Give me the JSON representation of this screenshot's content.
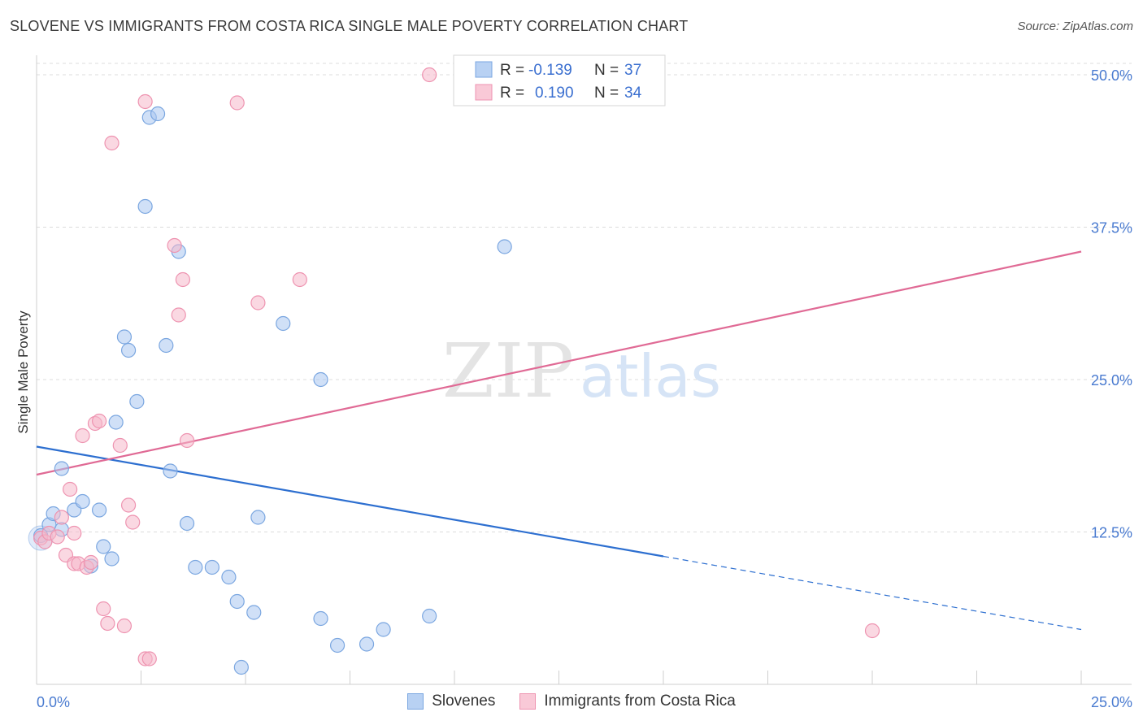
{
  "header": {
    "title": "SLOVENE VS IMMIGRANTS FROM COSTA RICA SINGLE MALE POVERTY CORRELATION CHART",
    "source": "Source: ZipAtlas.com"
  },
  "watermark": {
    "zip": "ZIP",
    "atlas": "atlas"
  },
  "legend": {
    "rows": [
      {
        "r_label": "R =",
        "r_value": "-0.139",
        "n_label": "N =",
        "n_value": "37"
      },
      {
        "r_label": "R =",
        "r_value": "0.190",
        "n_label": "N =",
        "n_value": "34"
      }
    ],
    "bottom": [
      "Slovenes",
      "Immigrants from Costa Rica"
    ]
  },
  "colors": {
    "blue_fill": "#a9c7f0",
    "blue_stroke": "#7aa6e0",
    "blue_line": "#2d6fd0",
    "pink_fill": "#f6b8cb",
    "pink_stroke": "#ee93b0",
    "pink_line": "#e06a95",
    "tick_text": "#4a7bd0"
  },
  "chart_data": {
    "type": "scatter",
    "title": "SLOVENE VS IMMIGRANTS FROM COSTA RICA SINGLE MALE POVERTY CORRELATION CHART",
    "xlabel": "",
    "ylabel": "Single Male Poverty",
    "xlim": [
      0,
      25
    ],
    "ylim": [
      0,
      52
    ],
    "x_tick_labels": [
      "0.0%",
      "25.0%"
    ],
    "y_ticks": [
      12.5,
      25.0,
      37.5,
      50.0
    ],
    "y_tick_labels": [
      "12.5%",
      "25.0%",
      "37.5%",
      "50.0%"
    ],
    "series": [
      {
        "name": "Slovenes",
        "color": "#7aa6e0",
        "R": -0.139,
        "N": 37,
        "points": [
          [
            0.1,
            12.2
          ],
          [
            0.3,
            13.1
          ],
          [
            0.4,
            14.0
          ],
          [
            0.6,
            12.7
          ],
          [
            0.6,
            17.7
          ],
          [
            0.9,
            14.3
          ],
          [
            1.1,
            15.0
          ],
          [
            1.3,
            9.7
          ],
          [
            1.5,
            14.3
          ],
          [
            1.6,
            11.3
          ],
          [
            1.8,
            10.3
          ],
          [
            1.9,
            21.5
          ],
          [
            2.1,
            28.5
          ],
          [
            2.2,
            27.4
          ],
          [
            2.4,
            23.2
          ],
          [
            2.6,
            39.2
          ],
          [
            2.7,
            46.5
          ],
          [
            2.9,
            46.8
          ],
          [
            3.1,
            27.8
          ],
          [
            3.2,
            17.5
          ],
          [
            3.4,
            35.5
          ],
          [
            3.6,
            13.2
          ],
          [
            3.8,
            9.6
          ],
          [
            4.2,
            9.6
          ],
          [
            4.6,
            8.8
          ],
          [
            4.8,
            6.8
          ],
          [
            4.9,
            1.4
          ],
          [
            5.2,
            5.9
          ],
          [
            5.3,
            13.7
          ],
          [
            5.9,
            29.6
          ],
          [
            6.8,
            25.0
          ],
          [
            6.8,
            5.4
          ],
          [
            7.2,
            3.2
          ],
          [
            7.9,
            3.3
          ],
          [
            8.3,
            4.5
          ],
          [
            9.4,
            5.6
          ],
          [
            11.2,
            35.9
          ]
        ]
      },
      {
        "name": "Immigrants from Costa Rica",
        "color": "#ee93b0",
        "R": 0.19,
        "N": 34,
        "points": [
          [
            0.1,
            12.0
          ],
          [
            0.2,
            11.7
          ],
          [
            0.3,
            12.4
          ],
          [
            0.5,
            12.1
          ],
          [
            0.6,
            13.7
          ],
          [
            0.7,
            10.6
          ],
          [
            0.8,
            16.0
          ],
          [
            0.9,
            9.9
          ],
          [
            1.0,
            9.9
          ],
          [
            1.1,
            20.4
          ],
          [
            1.2,
            9.6
          ],
          [
            1.3,
            10.0
          ],
          [
            1.4,
            21.4
          ],
          [
            1.5,
            21.6
          ],
          [
            1.6,
            6.2
          ],
          [
            1.7,
            5.0
          ],
          [
            1.8,
            44.4
          ],
          [
            2.0,
            19.6
          ],
          [
            2.1,
            4.8
          ],
          [
            2.2,
            14.7
          ],
          [
            2.3,
            13.3
          ],
          [
            2.6,
            2.1
          ],
          [
            2.7,
            2.1
          ],
          [
            2.6,
            47.8
          ],
          [
            3.3,
            36.0
          ],
          [
            3.5,
            33.2
          ],
          [
            3.4,
            30.3
          ],
          [
            3.6,
            20.0
          ],
          [
            4.8,
            47.7
          ],
          [
            5.3,
            31.3
          ],
          [
            6.3,
            33.2
          ],
          [
            9.4,
            50.0
          ],
          [
            20.0,
            4.4
          ],
          [
            0.9,
            12.4
          ]
        ]
      }
    ],
    "trend_lines": [
      {
        "series": "Slovenes",
        "x": [
          0,
          15
        ],
        "y": [
          19.5,
          10.5
        ],
        "dashed_extension": {
          "x": [
            15,
            25
          ],
          "y": [
            10.5,
            4.5
          ]
        }
      },
      {
        "series": "Immigrants from Costa Rica",
        "x": [
          0,
          25
        ],
        "y": [
          17.2,
          35.5
        ]
      }
    ]
  }
}
